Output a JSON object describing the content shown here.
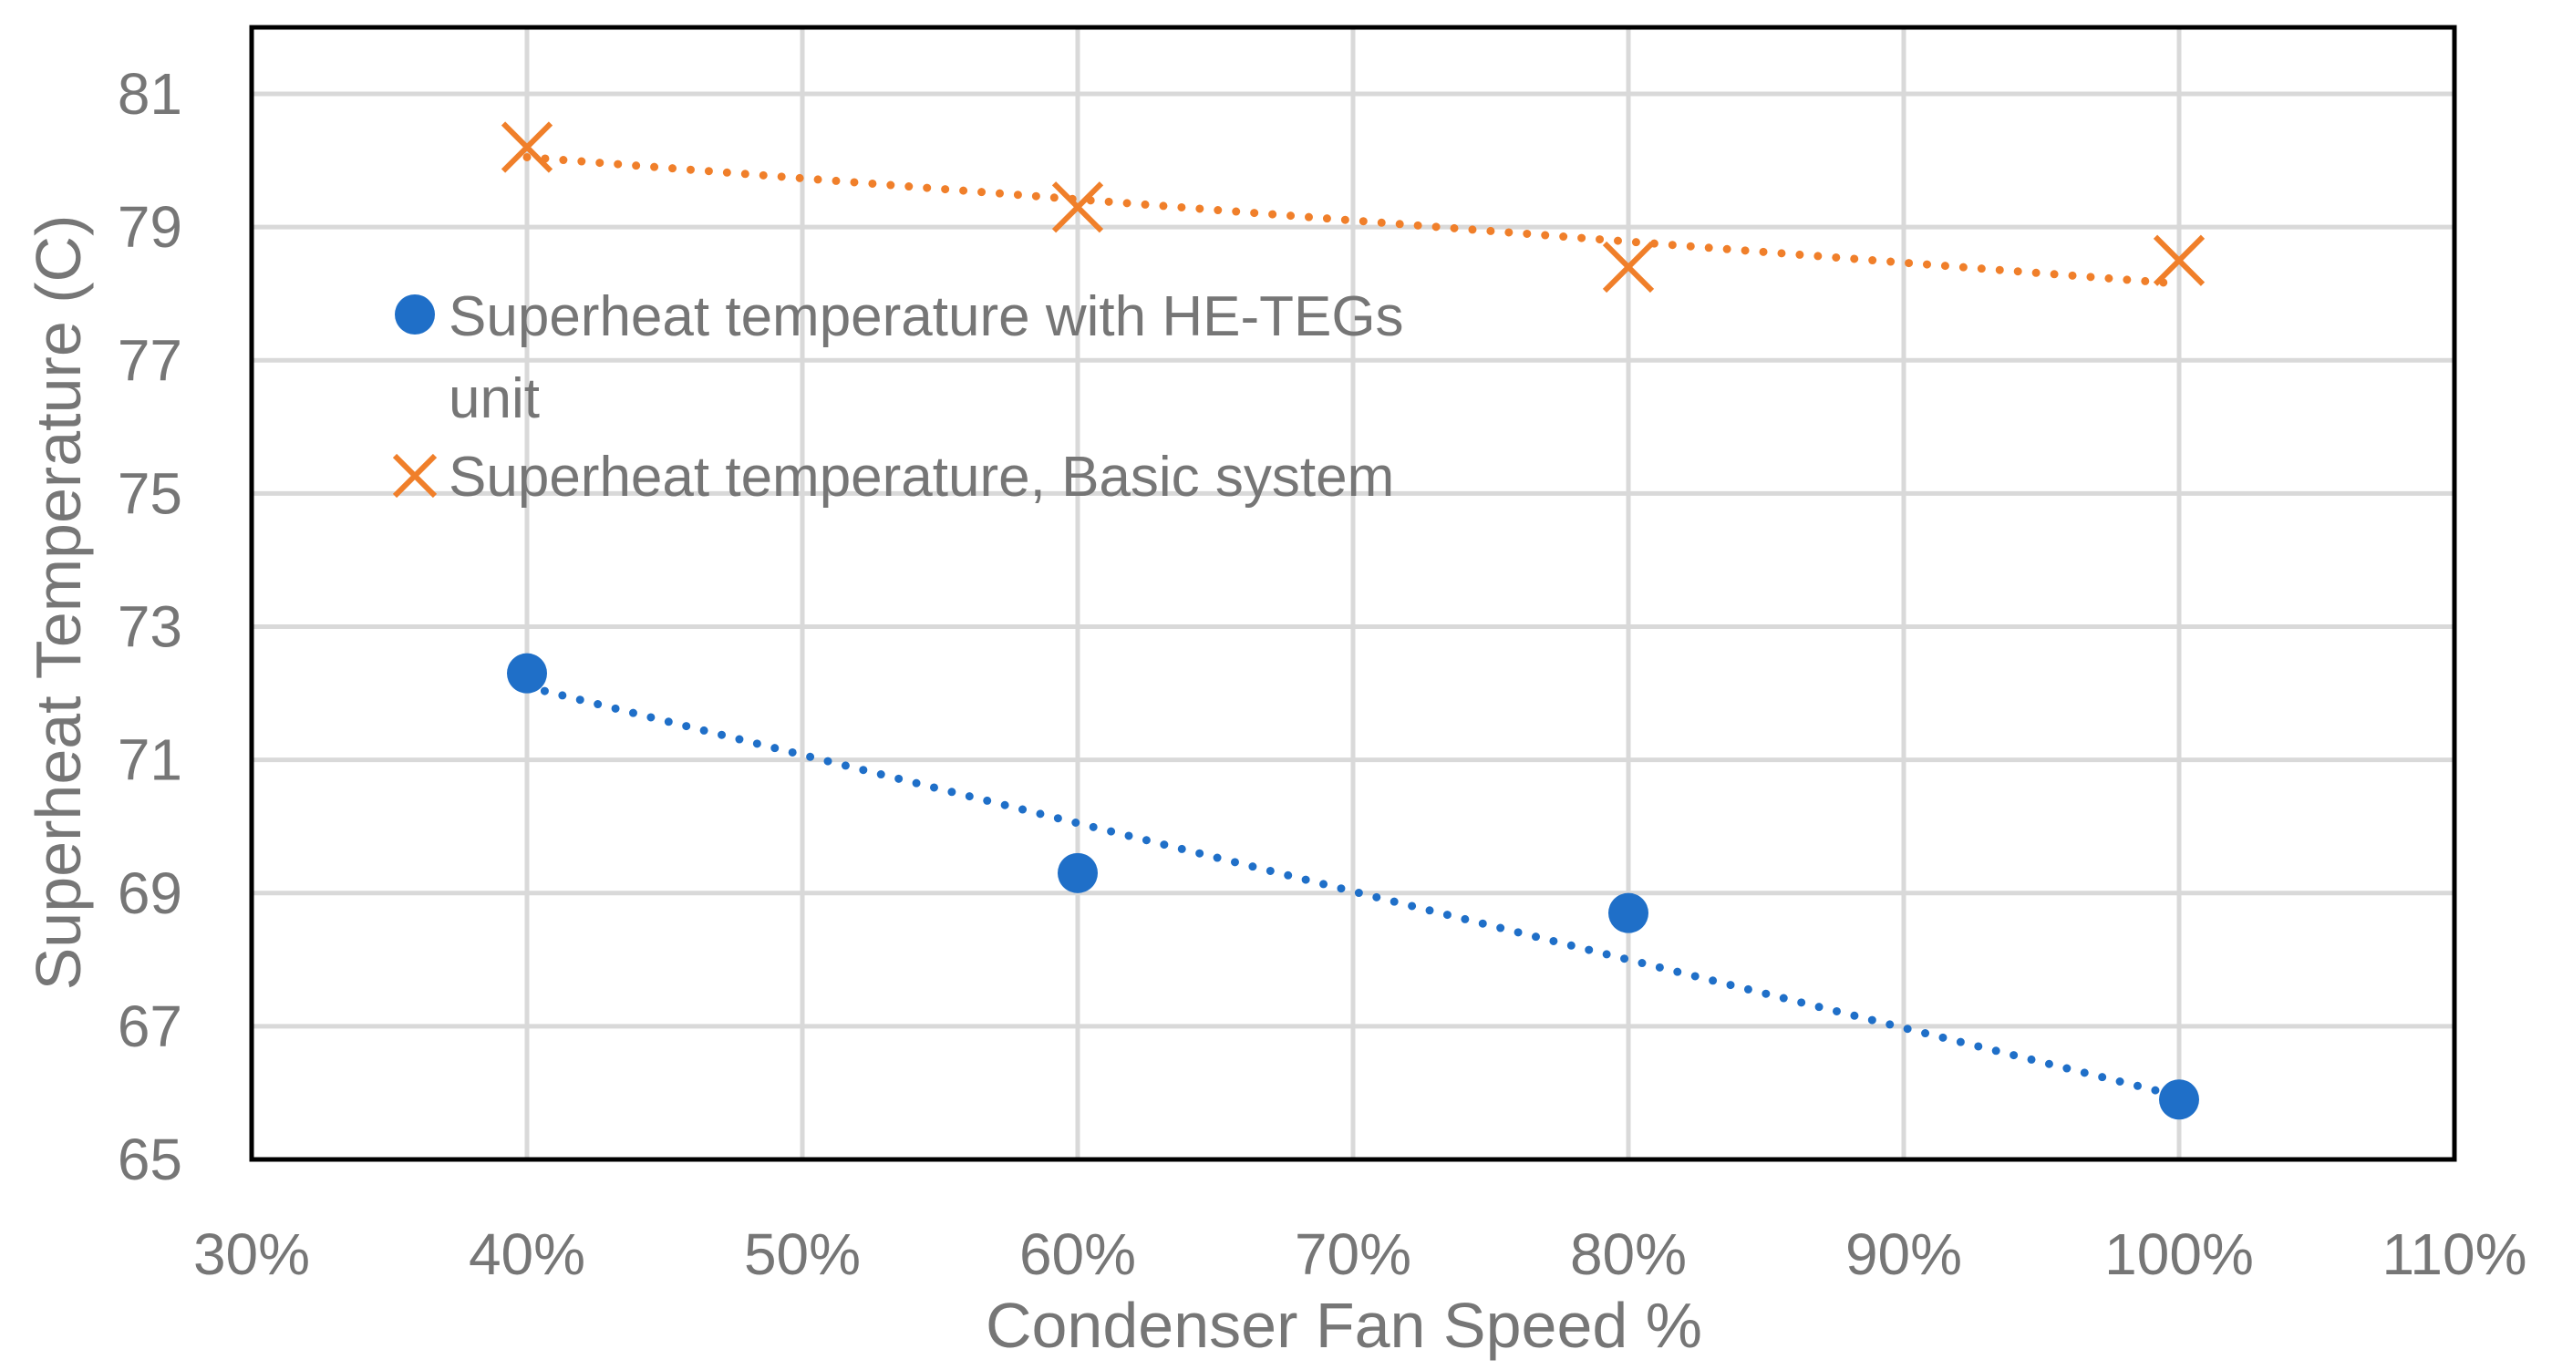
{
  "chart_data": {
    "type": "scatter",
    "title": "",
    "xlabel": "Condenser Fan Speed %",
    "ylabel": "Superheat Temperature (C)",
    "xlim": [
      30,
      110
    ],
    "ylim": [
      65,
      82
    ],
    "xticks": [
      30,
      40,
      50,
      60,
      70,
      80,
      90,
      100,
      110
    ],
    "xtick_labels": [
      "30%",
      "40%",
      "50%",
      "60%",
      "70%",
      "80%",
      "90%",
      "100%",
      "110%"
    ],
    "yticks": [
      65,
      67,
      69,
      71,
      73,
      75,
      77,
      79,
      81
    ],
    "ytick_labels": [
      "65",
      "67",
      "69",
      "71",
      "73",
      "75",
      "77",
      "79",
      "81"
    ],
    "grid": true,
    "legend_position": "top-left inside plot",
    "series": [
      {
        "name": "Superheat temperature with HE-TEGs unit",
        "legend_lines": [
          "Superheat temperature with HE-TEGs",
          "unit"
        ],
        "marker": "circle",
        "color": "#1f6fc8",
        "x": [
          40,
          60,
          80,
          100
        ],
        "y": [
          72.3,
          69.3,
          68.7,
          65.9
        ],
        "trendline": {
          "type": "linear",
          "style": "dotted",
          "x": [
            40,
            100
          ],
          "y": [
            72.1,
            65.95
          ]
        }
      },
      {
        "name": "Superheat temperature, Basic system",
        "legend_lines": [
          "Superheat temperature, Basic system"
        ],
        "marker": "x",
        "color": "#f07f2a",
        "x": [
          40,
          60,
          80,
          100
        ],
        "y": [
          80.2,
          79.3,
          78.4,
          78.5
        ],
        "trendline": {
          "type": "linear",
          "style": "dotted",
          "x": [
            40,
            100
          ],
          "y": [
            80.05,
            78.15
          ]
        }
      }
    ]
  }
}
